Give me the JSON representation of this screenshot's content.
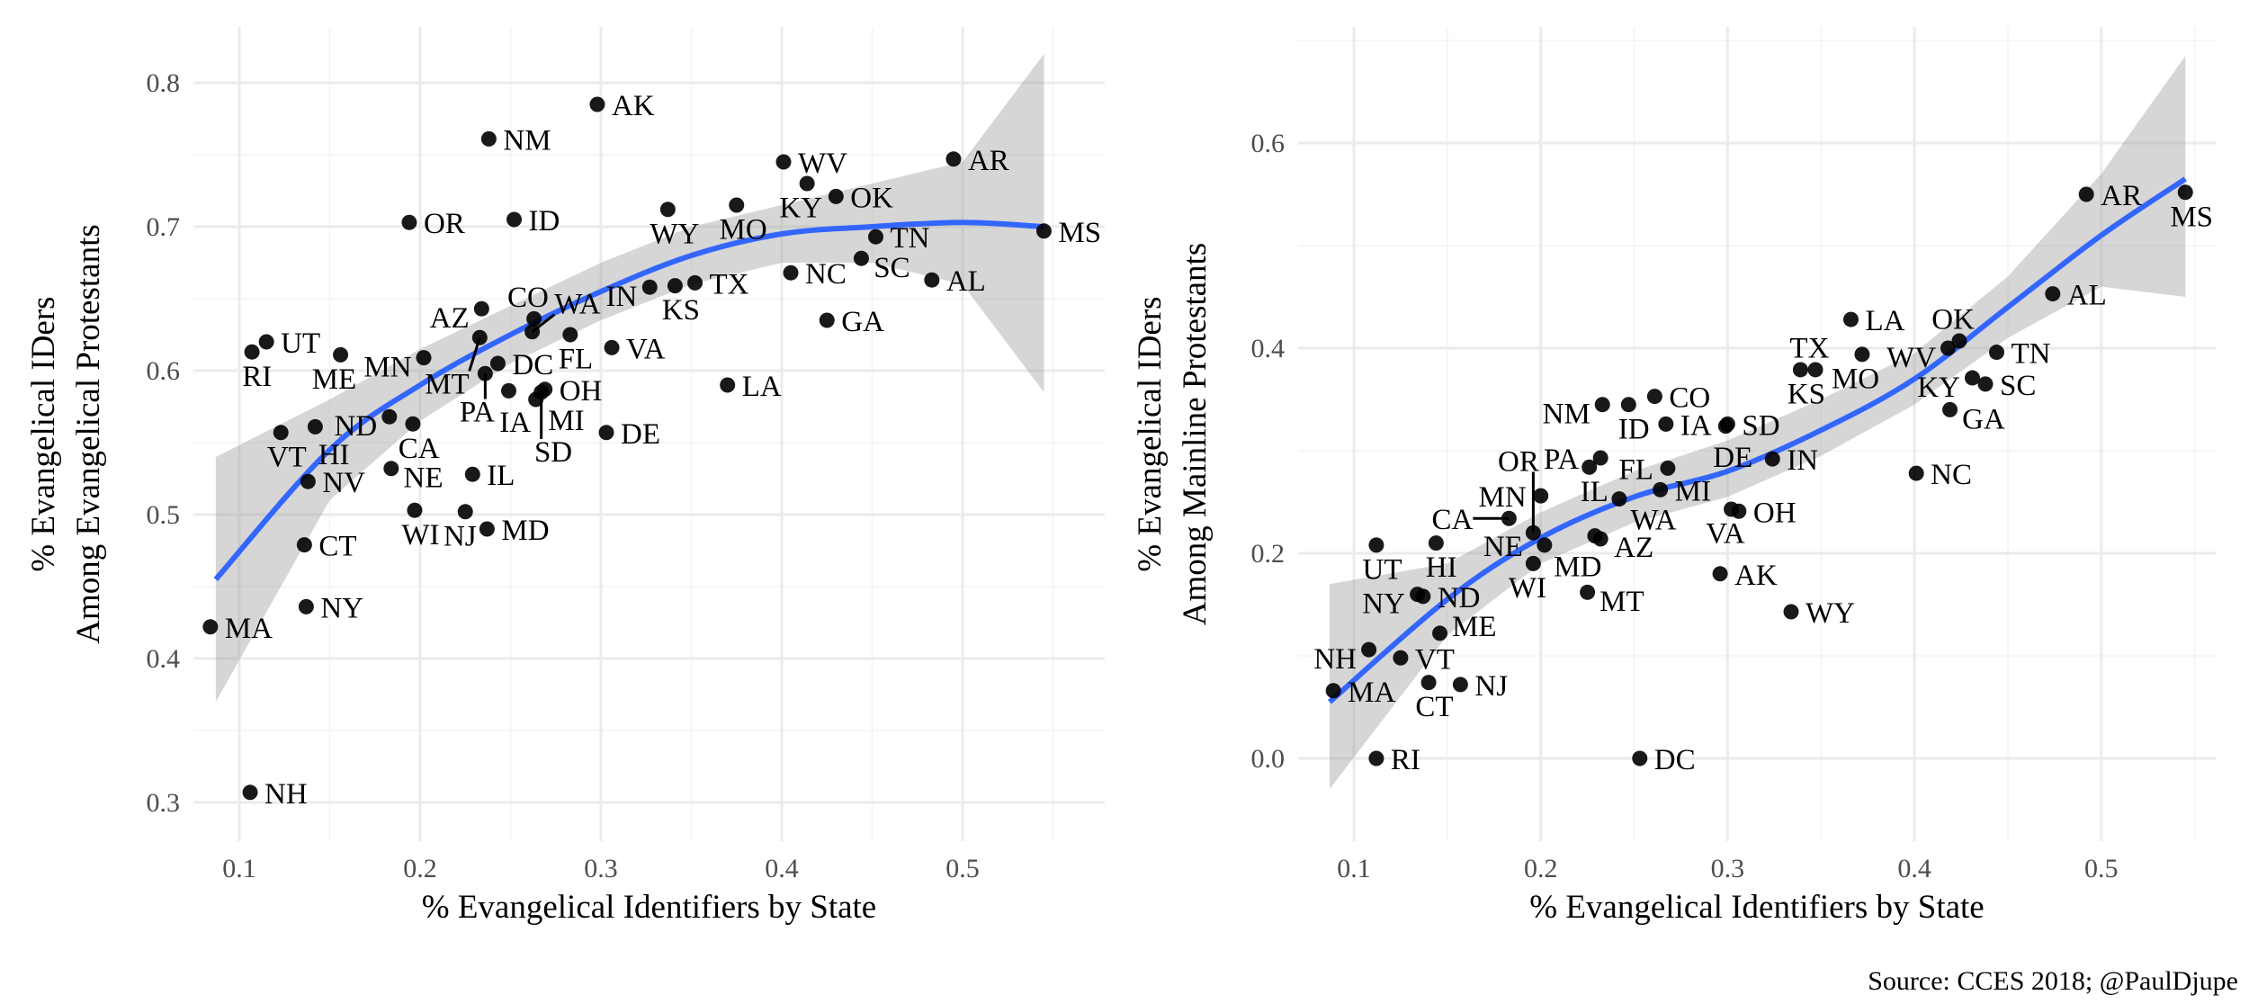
{
  "chart_data": [
    {
      "type": "scatter",
      "xlabel": "% Evangelical Identifiers by State",
      "ylabel": [
        "% Evangelical IDers",
        "Among Evangelical Protestants"
      ],
      "xlim": [
        0.065,
        0.565
      ],
      "ylim": [
        0.28,
        0.82
      ],
      "xticks": [
        0.1,
        0.2,
        0.3,
        0.4,
        0.5
      ],
      "xtick_labels": [
        "0.1",
        "0.2",
        "0.3",
        "0.4",
        "0.5"
      ],
      "yticks": [
        0.3,
        0.4,
        0.5,
        0.6,
        0.7,
        0.8
      ],
      "ytick_labels": [
        "0.3",
        "0.4",
        "0.5",
        "0.6",
        "0.7",
        "0.8"
      ],
      "grid": true,
      "points": [
        {
          "label": "AK",
          "x": 0.298,
          "y": 0.785
        },
        {
          "label": "NM",
          "x": 0.238,
          "y": 0.761
        },
        {
          "label": "OR",
          "x": 0.194,
          "y": 0.703
        },
        {
          "label": "ID",
          "x": 0.252,
          "y": 0.705
        },
        {
          "label": "WV",
          "x": 0.401,
          "y": 0.745
        },
        {
          "label": "KY",
          "x": 0.414,
          "y": 0.73
        },
        {
          "label": "AR",
          "x": 0.495,
          "y": 0.747
        },
        {
          "label": "OK",
          "x": 0.43,
          "y": 0.721
        },
        {
          "label": "WY",
          "x": 0.337,
          "y": 0.712
        },
        {
          "label": "MO",
          "x": 0.375,
          "y": 0.715
        },
        {
          "label": "NC",
          "x": 0.405,
          "y": 0.668
        },
        {
          "label": "TN",
          "x": 0.452,
          "y": 0.693
        },
        {
          "label": "SC",
          "x": 0.444,
          "y": 0.678
        },
        {
          "label": "AL",
          "x": 0.483,
          "y": 0.663
        },
        {
          "label": "MS",
          "x": 0.545,
          "y": 0.697
        },
        {
          "label": "GA",
          "x": 0.425,
          "y": 0.635
        },
        {
          "label": "LA",
          "x": 0.37,
          "y": 0.59
        },
        {
          "label": "TX",
          "x": 0.352,
          "y": 0.661
        },
        {
          "label": "KS",
          "x": 0.341,
          "y": 0.659
        },
        {
          "label": "IN",
          "x": 0.327,
          "y": 0.658
        },
        {
          "label": "VA",
          "x": 0.306,
          "y": 0.616
        },
        {
          "label": "FL",
          "x": 0.283,
          "y": 0.625
        },
        {
          "label": "CO",
          "x": 0.263,
          "y": 0.636
        },
        {
          "label": "AZ",
          "x": 0.234,
          "y": 0.643
        },
        {
          "label": "MT",
          "x": 0.233,
          "y": 0.623
        },
        {
          "label": "WA",
          "x": 0.262,
          "y": 0.627
        },
        {
          "label": "DC",
          "x": 0.243,
          "y": 0.605
        },
        {
          "label": "PA",
          "x": 0.236,
          "y": 0.598
        },
        {
          "label": "MN",
          "x": 0.202,
          "y": 0.609
        },
        {
          "label": "ND",
          "x": 0.183,
          "y": 0.568
        },
        {
          "label": "UT",
          "x": 0.115,
          "y": 0.62
        },
        {
          "label": "RI",
          "x": 0.107,
          "y": 0.613
        },
        {
          "label": "ME",
          "x": 0.156,
          "y": 0.611
        },
        {
          "label": "CA",
          "x": 0.196,
          "y": 0.563
        },
        {
          "label": "IA",
          "x": 0.249,
          "y": 0.586
        },
        {
          "label": "OH",
          "x": 0.269,
          "y": 0.587
        },
        {
          "label": "MI",
          "x": 0.264,
          "y": 0.58
        },
        {
          "label": "DE",
          "x": 0.303,
          "y": 0.557
        },
        {
          "label": "SD",
          "x": 0.267,
          "y": 0.585
        },
        {
          "label": "VT",
          "x": 0.123,
          "y": 0.557
        },
        {
          "label": "HI",
          "x": 0.142,
          "y": 0.561
        },
        {
          "label": "NV",
          "x": 0.138,
          "y": 0.523
        },
        {
          "label": "NE",
          "x": 0.184,
          "y": 0.532
        },
        {
          "label": "IL",
          "x": 0.229,
          "y": 0.528
        },
        {
          "label": "WI",
          "x": 0.197,
          "y": 0.503
        },
        {
          "label": "MD",
          "x": 0.237,
          "y": 0.49
        },
        {
          "label": "CT",
          "x": 0.136,
          "y": 0.479
        },
        {
          "label": "NJ",
          "x": 0.225,
          "y": 0.502
        },
        {
          "label": "NY",
          "x": 0.137,
          "y": 0.436
        },
        {
          "label": "MA",
          "x": 0.084,
          "y": 0.422
        },
        {
          "label": "NH",
          "x": 0.106,
          "y": 0.307
        }
      ],
      "fit": {
        "x": [
          0.087,
          0.15,
          0.2,
          0.25,
          0.3,
          0.35,
          0.4,
          0.45,
          0.5,
          0.545
        ],
        "y": [
          0.455,
          0.545,
          0.59,
          0.625,
          0.655,
          0.68,
          0.695,
          0.7,
          0.703,
          0.7
        ],
        "lower": [
          0.37,
          0.51,
          0.565,
          0.605,
          0.635,
          0.66,
          0.675,
          0.675,
          0.66,
          0.585
        ],
        "upper": [
          0.54,
          0.58,
          0.615,
          0.645,
          0.675,
          0.7,
          0.715,
          0.73,
          0.745,
          0.82
        ]
      }
    },
    {
      "type": "scatter",
      "xlabel": "% Evangelical Identifiers by State",
      "ylabel": [
        "% Evangelical IDers",
        "Among Mainline Protestants"
      ],
      "xlim": [
        0.07,
        0.55
      ],
      "ylim": [
        -0.03,
        0.69
      ],
      "xticks": [
        0.1,
        0.2,
        0.3,
        0.4,
        0.5
      ],
      "xtick_labels": [
        "0.1",
        "0.2",
        "0.3",
        "0.4",
        "0.5"
      ],
      "yticks": [
        0.0,
        0.2,
        0.4,
        0.6
      ],
      "ytick_labels": [
        "0.0",
        "0.2",
        "0.4",
        "0.6"
      ],
      "grid": true,
      "points": [
        {
          "label": "MS",
          "x": 0.545,
          "y": 0.552
        },
        {
          "label": "AR",
          "x": 0.492,
          "y": 0.55
        },
        {
          "label": "AL",
          "x": 0.474,
          "y": 0.453
        },
        {
          "label": "TN",
          "x": 0.444,
          "y": 0.396
        },
        {
          "label": "SC",
          "x": 0.438,
          "y": 0.365
        },
        {
          "label": "GA",
          "x": 0.419,
          "y": 0.34
        },
        {
          "label": "OK",
          "x": 0.424,
          "y": 0.407
        },
        {
          "label": "WV",
          "x": 0.418,
          "y": 0.4
        },
        {
          "label": "KY",
          "x": 0.431,
          "y": 0.371
        },
        {
          "label": "NC",
          "x": 0.401,
          "y": 0.278
        },
        {
          "label": "LA",
          "x": 0.366,
          "y": 0.428
        },
        {
          "label": "MO",
          "x": 0.372,
          "y": 0.394
        },
        {
          "label": "KS",
          "x": 0.339,
          "y": 0.379
        },
        {
          "label": "TX",
          "x": 0.347,
          "y": 0.379
        },
        {
          "label": "SD",
          "x": 0.3,
          "y": 0.326
        },
        {
          "label": "DE",
          "x": 0.299,
          "y": 0.324
        },
        {
          "label": "IN",
          "x": 0.324,
          "y": 0.292
        },
        {
          "label": "OH",
          "x": 0.306,
          "y": 0.241
        },
        {
          "label": "VA",
          "x": 0.302,
          "y": 0.243
        },
        {
          "label": "FL",
          "x": 0.268,
          "y": 0.283
        },
        {
          "label": "MI",
          "x": 0.264,
          "y": 0.262
        },
        {
          "label": "AK",
          "x": 0.296,
          "y": 0.18
        },
        {
          "label": "WY",
          "x": 0.334,
          "y": 0.143
        },
        {
          "label": "CO",
          "x": 0.261,
          "y": 0.353
        },
        {
          "label": "IA",
          "x": 0.267,
          "y": 0.326
        },
        {
          "label": "ID",
          "x": 0.247,
          "y": 0.345
        },
        {
          "label": "NM",
          "x": 0.233,
          "y": 0.345
        },
        {
          "label": "IL",
          "x": 0.226,
          "y": 0.284
        },
        {
          "label": "PA",
          "x": 0.232,
          "y": 0.293
        },
        {
          "label": "WA",
          "x": 0.242,
          "y": 0.253
        },
        {
          "label": "MN",
          "x": 0.2,
          "y": 0.256
        },
        {
          "label": "AZ",
          "x": 0.229,
          "y": 0.217
        },
        {
          "label": "MD",
          "x": 0.232,
          "y": 0.214
        },
        {
          "label": "MT",
          "x": 0.225,
          "y": 0.162
        },
        {
          "label": "NE",
          "x": 0.202,
          "y": 0.208
        },
        {
          "label": "WI",
          "x": 0.196,
          "y": 0.19
        },
        {
          "label": "CA",
          "x": 0.183,
          "y": 0.234
        },
        {
          "label": "HI",
          "x": 0.144,
          "y": 0.21
        },
        {
          "label": "OR",
          "x": 0.196,
          "y": 0.22
        },
        {
          "label": "UT",
          "x": 0.112,
          "y": 0.208
        },
        {
          "label": "NY",
          "x": 0.134,
          "y": 0.16
        },
        {
          "label": "ND",
          "x": 0.137,
          "y": 0.158
        },
        {
          "label": "NH",
          "x": 0.108,
          "y": 0.106
        },
        {
          "label": "VT",
          "x": 0.125,
          "y": 0.098
        },
        {
          "label": "NJ",
          "x": 0.157,
          "y": 0.072
        },
        {
          "label": "MA",
          "x": 0.089,
          "y": 0.066
        },
        {
          "label": "CT",
          "x": 0.14,
          "y": 0.074
        },
        {
          "label": "ME",
          "x": 0.146,
          "y": 0.122
        },
        {
          "label": "RI",
          "x": 0.112,
          "y": 0.0
        },
        {
          "label": "DC",
          "x": 0.253,
          "y": 0.0
        }
      ],
      "fit": {
        "x": [
          0.087,
          0.15,
          0.2,
          0.25,
          0.3,
          0.35,
          0.4,
          0.45,
          0.5,
          0.545
        ],
        "y": [
          0.055,
          0.155,
          0.215,
          0.255,
          0.28,
          0.32,
          0.37,
          0.44,
          0.51,
          0.565
        ],
        "lower": [
          -0.03,
          0.12,
          0.19,
          0.23,
          0.255,
          0.295,
          0.345,
          0.41,
          0.46,
          0.45
        ],
        "upper": [
          0.17,
          0.19,
          0.24,
          0.28,
          0.31,
          0.35,
          0.395,
          0.47,
          0.57,
          0.685
        ]
      }
    }
  ],
  "caption": "Source: CCES 2018; @PaulDjupe",
  "colors": {
    "fit_line": "#3366FF",
    "band": "#999999",
    "points": "#000000",
    "grid": "#EBEBEB"
  }
}
